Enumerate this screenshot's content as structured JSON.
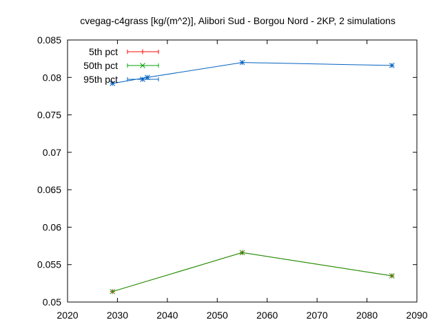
{
  "chart_data": {
    "type": "line",
    "title": "cvegag-c4grass [kg/(m^2)], Alibori Sud - Borgou Nord - 2KP, 2 simulations",
    "xlabel": "",
    "ylabel": "",
    "xlim": [
      2020,
      2090
    ],
    "ylim": [
      0.05,
      0.085
    ],
    "x_ticks": [
      "2020",
      "2030",
      "2040",
      "2050",
      "2060",
      "2070",
      "2080",
      "2090"
    ],
    "y_ticks": [
      "0.05",
      "0.055",
      "0.06",
      "0.065",
      "0.07",
      "0.075",
      "0.08",
      "0.085"
    ],
    "grid": false,
    "legend_position": "top-left",
    "series": [
      {
        "name": "5th pct",
        "color": "#ff0000",
        "marker": "plus",
        "x": [
          2029,
          2055,
          2085
        ],
        "y": [
          0.0514,
          0.0566,
          0.0535
        ]
      },
      {
        "name": "50th pct",
        "color": "#00a000",
        "marker": "cross",
        "x": [
          2029,
          2055,
          2085
        ],
        "y": [
          0.0514,
          0.0566,
          0.0535
        ]
      },
      {
        "name": "95th pct",
        "color": "#0060c0",
        "marker": "star",
        "x": [
          2029,
          2036,
          2055,
          2085
        ],
        "y": [
          0.0792,
          0.08,
          0.082,
          0.0816
        ]
      }
    ]
  }
}
